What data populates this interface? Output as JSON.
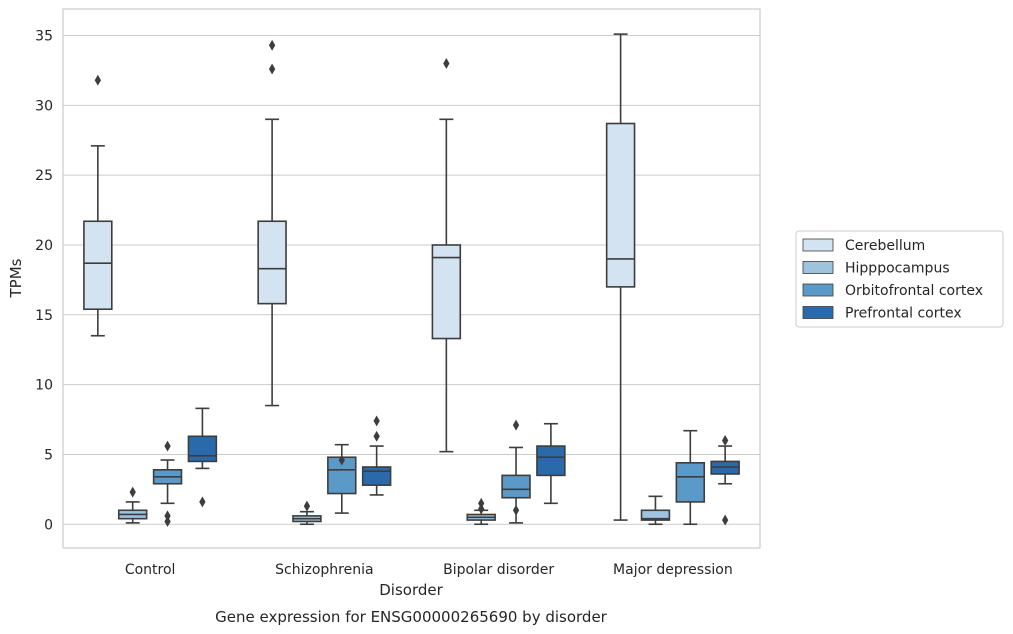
{
  "chart_data": {
    "type": "box",
    "title": "",
    "caption": "Gene expression for ENSG00000265690 by disorder",
    "xlabel": "Disorder",
    "ylabel": "TPMs",
    "ylim": [
      -1.7,
      36.9
    ],
    "yticks": [
      0,
      5,
      10,
      15,
      20,
      25,
      30,
      35
    ],
    "grid": "horizontal",
    "legend_position": "right",
    "categories": [
      "Control",
      "Schizophrenia",
      "Bipolar disorder",
      "Major depression"
    ],
    "series": [
      {
        "name": "Cerebellum",
        "color": "#d4e3f1",
        "boxes": [
          {
            "whisker_low": 13.5,
            "q1": 15.4,
            "median": 18.7,
            "q3": 21.7,
            "whisker_high": 27.1,
            "outliers": [
              31.8
            ]
          },
          {
            "whisker_low": 8.5,
            "q1": 15.8,
            "median": 18.3,
            "q3": 21.7,
            "whisker_high": 29.0,
            "outliers": [
              32.6,
              34.3
            ]
          },
          {
            "whisker_low": 5.2,
            "q1": 13.3,
            "median": 19.1,
            "q3": 20.0,
            "whisker_high": 29.0,
            "outliers": [
              33.0
            ]
          },
          {
            "whisker_low": 0.3,
            "q1": 17.0,
            "median": 19.0,
            "q3": 28.7,
            "whisker_high": 35.1,
            "outliers": []
          }
        ]
      },
      {
        "name": "Hipppocampus",
        "color": "#9dc3de",
        "boxes": [
          {
            "whisker_low": 0.1,
            "q1": 0.4,
            "median": 0.7,
            "q3": 1.0,
            "whisker_high": 1.6,
            "outliers": [
              2.3
            ]
          },
          {
            "whisker_low": 0.0,
            "q1": 0.2,
            "median": 0.4,
            "q3": 0.6,
            "whisker_high": 0.9,
            "outliers": [
              1.3
            ]
          },
          {
            "whisker_low": 0.0,
            "q1": 0.3,
            "median": 0.5,
            "q3": 0.7,
            "whisker_high": 1.0,
            "outliers": [
              1.5,
              1.1
            ]
          },
          {
            "whisker_low": 0.0,
            "q1": 0.3,
            "median": 0.4,
            "q3": 1.0,
            "whisker_high": 2.0,
            "outliers": []
          }
        ]
      },
      {
        "name": "Orbitofrontal cortex",
        "color": "#5b9ac8",
        "boxes": [
          {
            "whisker_low": 1.5,
            "q1": 2.9,
            "median": 3.4,
            "q3": 3.9,
            "whisker_high": 4.6,
            "outliers": [
              5.6,
              0.6,
              0.2
            ]
          },
          {
            "whisker_low": 0.8,
            "q1": 2.2,
            "median": 3.9,
            "q3": 4.8,
            "whisker_high": 5.7,
            "outliers": [
              4.6
            ]
          },
          {
            "whisker_low": 0.1,
            "q1": 1.9,
            "median": 2.5,
            "q3": 3.5,
            "whisker_high": 5.5,
            "outliers": [
              7.1,
              1.0
            ]
          },
          {
            "whisker_low": 0.0,
            "q1": 1.6,
            "median": 3.4,
            "q3": 4.4,
            "whisker_high": 6.7,
            "outliers": []
          }
        ]
      },
      {
        "name": "Prefrontal cortex",
        "color": "#2a6aaa",
        "boxes": [
          {
            "whisker_low": 4.0,
            "q1": 4.5,
            "median": 4.9,
            "q3": 6.3,
            "whisker_high": 8.3,
            "outliers": [
              1.6
            ]
          },
          {
            "whisker_low": 2.1,
            "q1": 2.8,
            "median": 3.8,
            "q3": 4.1,
            "whisker_high": 5.6,
            "outliers": [
              6.3,
              7.4
            ]
          },
          {
            "whisker_low": 1.5,
            "q1": 3.5,
            "median": 4.8,
            "q3": 5.6,
            "whisker_high": 7.2,
            "outliers": []
          },
          {
            "whisker_low": 2.9,
            "q1": 3.6,
            "median": 4.1,
            "q3": 4.5,
            "whisker_high": 5.6,
            "outliers": [
              6.0,
              0.3
            ]
          }
        ]
      }
    ]
  }
}
